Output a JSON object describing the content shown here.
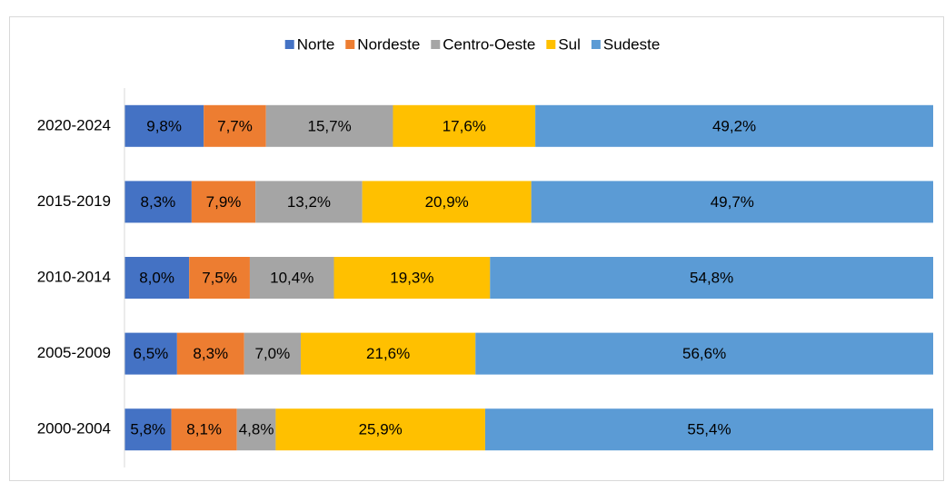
{
  "chart_data": {
    "type": "stacked-bar-horizontal",
    "categories": [
      "2020-2024",
      "2015-2019",
      "2010-2014",
      "2005-2009",
      "2000-2004"
    ],
    "xlim": [
      0,
      100
    ],
    "series": [
      {
        "name": "Norte",
        "color": "#4472c4",
        "values": [
          9.8,
          8.3,
          8.0,
          6.5,
          5.8
        ],
        "value_labels": [
          "9,8%",
          "8,3%",
          "8,0%",
          "6,5%",
          "5,8%"
        ]
      },
      {
        "name": "Nordeste",
        "color": "#ed7d31",
        "values": [
          7.7,
          7.9,
          7.5,
          8.3,
          8.1
        ],
        "value_labels": [
          "7,7%",
          "7,9%",
          "7,5%",
          "8,3%",
          "8,1%"
        ]
      },
      {
        "name": "Centro-Oeste",
        "color": "#a5a5a5",
        "values": [
          15.7,
          13.2,
          10.4,
          7.0,
          4.8
        ],
        "value_labels": [
          "15,7%",
          "13,2%",
          "10,4%",
          "7,0%",
          "4,8%"
        ]
      },
      {
        "name": "Sul",
        "color": "#ffc000",
        "values": [
          17.6,
          20.9,
          19.3,
          21.6,
          25.9
        ],
        "value_labels": [
          "17,6%",
          "20,9%",
          "19,3%",
          "21,6%",
          "25,9%"
        ]
      },
      {
        "name": "Sudeste",
        "color": "#5b9bd5",
        "values": [
          49.2,
          49.7,
          54.8,
          56.6,
          55.4
        ],
        "value_labels": [
          "49,2%",
          "49,7%",
          "54,8%",
          "56,6%",
          "55,4%"
        ]
      }
    ]
  }
}
